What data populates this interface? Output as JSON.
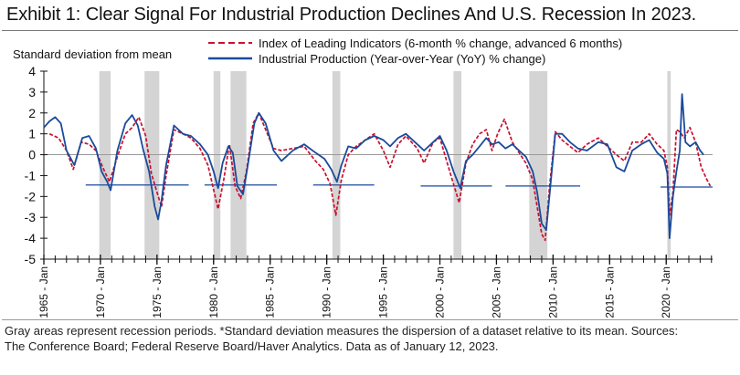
{
  "title": "Exhibit 1: Clear Signal For Industrial Production Declines And U.S. Recession In 2023.",
  "footnote": {
    "line1": "Gray areas represent recession periods. *Standard deviation measures the dispersion of a dataset relative to its mean. Sources:",
    "line2": "The Conference Board; Federal Reserve Board/Haver Analytics. Data as of January 12, 2023."
  },
  "chart_data": {
    "type": "line",
    "title": "",
    "ylabel": "Standard deviation from mean",
    "xlabel": "",
    "ylim": [
      -5,
      4
    ],
    "xlim": [
      1965,
      2024.1
    ],
    "yticks": [
      4,
      3,
      2,
      1,
      0,
      -1,
      -2,
      -3,
      -4,
      -5
    ],
    "xticks": [
      {
        "value": 1965,
        "label": "1965 - Jan"
      },
      {
        "value": 1970,
        "label": "1970 - Jan"
      },
      {
        "value": 1975,
        "label": "1975 - Jan"
      },
      {
        "value": 1980,
        "label": "1980 - Jan"
      },
      {
        "value": 1985,
        "label": "1985 - Jan"
      },
      {
        "value": 1990,
        "label": "1990 - Jan"
      },
      {
        "value": 1995,
        "label": "1995 - Jan"
      },
      {
        "value": 2000,
        "label": "2000 - Jan"
      },
      {
        "value": 2005,
        "label": "2005 - Jan"
      },
      {
        "value": 2010,
        "label": "2010 - Jan"
      },
      {
        "value": 2015,
        "label": "2015 - Jan"
      },
      {
        "value": 2020,
        "label": "2020 - Jan"
      }
    ],
    "recessions": [
      [
        1969.9,
        1970.9
      ],
      [
        1973.9,
        1975.2
      ],
      [
        1980.0,
        1980.6
      ],
      [
        1981.5,
        1982.9
      ],
      [
        1990.5,
        1991.2
      ],
      [
        2001.2,
        2001.9
      ],
      [
        2007.9,
        2009.5
      ],
      [
        2020.1,
        2020.4
      ]
    ],
    "threshold_segments": [
      {
        "y": -1.45,
        "x": [
          1968.7,
          1977.8
        ]
      },
      {
        "y": -1.45,
        "x": [
          1979.2,
          1985.6
        ]
      },
      {
        "y": -1.45,
        "x": [
          1988.8,
          1994.2
        ]
      },
      {
        "y": -1.5,
        "x": [
          1998.3,
          2004.6
        ]
      },
      {
        "y": -1.5,
        "x": [
          2005.8,
          2012.4
        ]
      },
      {
        "y": -1.55,
        "x": [
          2019.5,
          2024.1
        ]
      }
    ],
    "series": [
      {
        "name": "Index of Leading Indicators (6-month % change, advanced 6 months)",
        "style": "dashed",
        "color": "#c8102e",
        "x": [
          1965.5,
          1966.3,
          1967.0,
          1967.6,
          1968.3,
          1969.0,
          1969.6,
          1970.2,
          1970.8,
          1971.5,
          1972.2,
          1972.8,
          1973.4,
          1974.0,
          1974.5,
          1975.0,
          1975.4,
          1975.8,
          1976.5,
          1977.3,
          1978.0,
          1978.8,
          1979.5,
          1980.1,
          1980.4,
          1980.9,
          1981.4,
          1981.9,
          1982.4,
          1982.9,
          1983.5,
          1984.0,
          1984.6,
          1985.3,
          1986.0,
          1987.0,
          1988.0,
          1989.0,
          1989.7,
          1990.3,
          1990.8,
          1991.3,
          1991.9,
          1992.6,
          1993.4,
          1994.2,
          1995.0,
          1995.6,
          1996.3,
          1997.0,
          1998.0,
          1998.6,
          1999.4,
          2000.0,
          2000.6,
          2001.2,
          2001.7,
          2002.3,
          2002.9,
          2003.5,
          2004.1,
          2004.6,
          2005.1,
          2005.7,
          2006.4,
          2007.0,
          2007.6,
          2008.2,
          2008.6,
          2009.0,
          2009.3,
          2009.7,
          2010.2,
          2010.8,
          2011.5,
          2012.2,
          2013.0,
          2014.0,
          2014.8,
          2015.6,
          2016.3,
          2017.0,
          2017.8,
          2018.5,
          2019.2,
          2019.8,
          2020.1,
          2020.3,
          2020.6,
          2020.9,
          2021.2,
          2021.6,
          2022.1,
          2022.6,
          2023.1,
          2023.6,
          2023.9
        ],
        "y": [
          1.0,
          0.8,
          0.2,
          -0.7,
          0.6,
          0.5,
          0.2,
          -0.6,
          -1.3,
          -0.1,
          1.0,
          1.3,
          1.8,
          0.9,
          -0.9,
          -1.8,
          -2.5,
          -1.0,
          1.2,
          1.0,
          0.8,
          0.3,
          -0.5,
          -1.9,
          -2.6,
          -1.2,
          0.5,
          -1.5,
          -2.1,
          -0.8,
          1.5,
          2.0,
          1.2,
          0.3,
          0.2,
          0.3,
          0.4,
          -0.3,
          -0.7,
          -1.4,
          -2.9,
          -1.2,
          0.0,
          0.4,
          0.7,
          1.0,
          0.2,
          -0.6,
          0.5,
          0.9,
          0.3,
          -0.4,
          0.6,
          0.8,
          -0.3,
          -1.4,
          -2.3,
          -0.4,
          0.5,
          1.0,
          1.2,
          0.2,
          1.0,
          1.7,
          0.6,
          0.1,
          -0.4,
          -1.2,
          -2.5,
          -3.8,
          -4.1,
          -1.5,
          1.1,
          0.7,
          0.4,
          0.1,
          0.5,
          0.8,
          0.4,
          0.0,
          -0.3,
          0.6,
          0.6,
          1.0,
          0.5,
          0.2,
          -0.6,
          -2.9,
          -1.8,
          1.2,
          1.1,
          0.8,
          1.3,
          0.6,
          -0.6,
          -1.2,
          -1.5
        ]
      },
      {
        "name": "Industrial Production (Year-over-Year (YoY) % change)",
        "style": "solid",
        "color": "#1a4a9c",
        "x": [
          1965.0,
          1965.5,
          1966.0,
          1966.5,
          1967.0,
          1967.7,
          1968.4,
          1969.0,
          1969.6,
          1970.1,
          1970.6,
          1970.9,
          1971.5,
          1972.2,
          1972.8,
          1973.3,
          1973.8,
          1974.3,
          1974.8,
          1975.1,
          1975.4,
          1975.8,
          1976.5,
          1977.3,
          1978.0,
          1978.8,
          1979.5,
          1980.0,
          1980.4,
          1980.8,
          1981.3,
          1981.7,
          1982.1,
          1982.6,
          1983.0,
          1983.6,
          1984.0,
          1984.6,
          1985.3,
          1986.0,
          1987.0,
          1988.0,
          1989.0,
          1989.8,
          1990.4,
          1990.9,
          1991.3,
          1991.9,
          1992.6,
          1993.4,
          1994.2,
          1995.0,
          1995.6,
          1996.3,
          1997.0,
          1998.0,
          1998.6,
          1999.4,
          2000.0,
          2000.6,
          2001.2,
          2001.8,
          2002.3,
          2002.9,
          2003.5,
          2004.1,
          2004.6,
          2005.2,
          2005.8,
          2006.4,
          2007.0,
          2007.6,
          2008.2,
          2008.6,
          2009.0,
          2009.4,
          2009.7,
          2010.2,
          2010.8,
          2011.5,
          2012.2,
          2013.0,
          2014.0,
          2014.8,
          2015.6,
          2016.3,
          2017.0,
          2017.8,
          2018.5,
          2019.2,
          2019.8,
          2020.1,
          2020.3,
          2020.6,
          2020.9,
          2021.2,
          2021.4,
          2021.7,
          2022.1,
          2022.6,
          2023.0,
          2023.3
        ],
        "y": [
          1.3,
          1.6,
          1.8,
          1.5,
          0.2,
          -0.5,
          0.8,
          0.9,
          0.3,
          -0.8,
          -1.3,
          -1.7,
          0.2,
          1.5,
          1.9,
          1.4,
          0.2,
          -0.8,
          -2.5,
          -3.1,
          -2.2,
          -0.5,
          1.4,
          1.0,
          0.9,
          0.5,
          0.0,
          -0.8,
          -1.6,
          -0.4,
          0.4,
          0.1,
          -1.5,
          -1.9,
          -0.6,
          1.5,
          2.0,
          1.5,
          0.2,
          -0.3,
          0.2,
          0.5,
          0.1,
          -0.2,
          -0.7,
          -1.3,
          -0.5,
          0.4,
          0.3,
          0.7,
          0.9,
          0.7,
          0.4,
          0.8,
          1.0,
          0.5,
          0.2,
          0.6,
          0.9,
          0.2,
          -0.8,
          -1.6,
          -0.3,
          0.0,
          0.4,
          0.8,
          0.5,
          0.6,
          0.3,
          0.5,
          0.2,
          -0.1,
          -0.8,
          -1.8,
          -3.3,
          -3.6,
          -1.9,
          1.0,
          1.0,
          0.6,
          0.3,
          0.2,
          0.6,
          0.5,
          -0.6,
          -0.8,
          0.2,
          0.5,
          0.7,
          0.1,
          -0.2,
          -0.9,
          -4.0,
          -2.0,
          -0.8,
          0.2,
          2.9,
          0.6,
          0.4,
          0.6,
          0.2,
          0.0
        ]
      }
    ],
    "legend_position": "top-center"
  }
}
